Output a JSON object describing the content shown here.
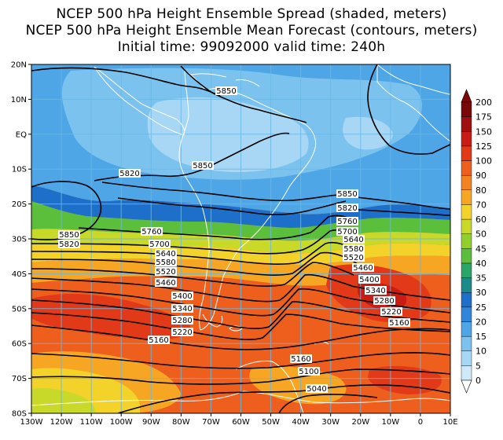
{
  "titles": {
    "line1": "NCEP 500 hPa Height Ensemble Spread (shaded, meters)",
    "line2": "NCEP 500 hPa Height Ensemble Mean Forecast (contours, meters)",
    "line3": "Initial time: 99092000   valid time: 240h"
  },
  "axes": {
    "lat_labels": [
      "20N",
      "10N",
      "EQ",
      "10S",
      "20S",
      "30S",
      "40S",
      "50S",
      "60S",
      "70S",
      "80S"
    ],
    "lon_labels": [
      "130W",
      "120W",
      "110W",
      "100W",
      "90W",
      "80W",
      "70W",
      "60W",
      "50W",
      "40W",
      "30W",
      "20W",
      "10W",
      "0",
      "10E"
    ]
  },
  "colorbar": {
    "labels": [
      "0",
      "5",
      "10",
      "15",
      "20",
      "25",
      "30",
      "35",
      "40",
      "45",
      "50",
      "60",
      "70",
      "80",
      "90",
      "100",
      "125",
      "150",
      "175",
      "200"
    ],
    "colors": [
      "#cfe9f9",
      "#a7d7f5",
      "#7cc2ef",
      "#4ea6e7",
      "#2f86da",
      "#1d6fc9",
      "#1a8a8a",
      "#2aa66a",
      "#5cbf3c",
      "#93cf2c",
      "#c8d92a",
      "#f3d22a",
      "#f6a623",
      "#f38221",
      "#ee5f1e",
      "#e23a18",
      "#c81c14",
      "#a00f0f",
      "#7a0808"
    ]
  },
  "contour_labels": [
    {
      "text": "5850"
    },
    {
      "text": "5850"
    },
    {
      "text": "5820"
    },
    {
      "text": "5850"
    },
    {
      "text": "5820"
    },
    {
      "text": "5850"
    },
    {
      "text": "5820"
    },
    {
      "text": "5760"
    },
    {
      "text": "5700"
    },
    {
      "text": "5640"
    },
    {
      "text": "5580"
    },
    {
      "text": "5520"
    },
    {
      "text": "5460"
    },
    {
      "text": "5400"
    },
    {
      "text": "5340"
    },
    {
      "text": "5280"
    },
    {
      "text": "5220"
    },
    {
      "text": "5160"
    },
    {
      "text": "5760"
    },
    {
      "text": "5700"
    },
    {
      "text": "5640"
    },
    {
      "text": "5580"
    },
    {
      "text": "5520"
    },
    {
      "text": "5460"
    },
    {
      "text": "5400"
    },
    {
      "text": "5340"
    },
    {
      "text": "5280"
    },
    {
      "text": "5220"
    },
    {
      "text": "5160"
    },
    {
      "text": "5160"
    },
    {
      "text": "5100"
    },
    {
      "text": "5040"
    }
  ]
}
